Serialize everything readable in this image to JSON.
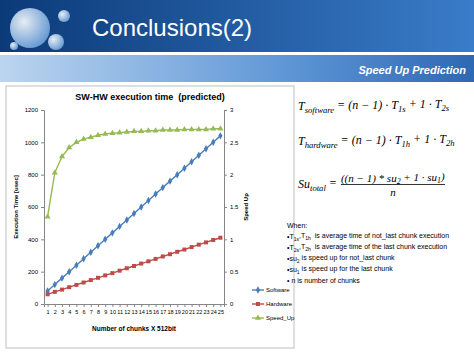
{
  "slide": {
    "title": "Conclusions(2)",
    "subtitle": "Speed Up Prediction",
    "formulas": [
      {
        "lhs": [
          {
            "text": "T"
          },
          {
            "text": "software",
            "sub": true
          },
          {
            "text": " = "
          }
        ],
        "rhs": [
          {
            "text": "(n − 1) · T"
          },
          {
            "text": "1s",
            "sub": true
          },
          {
            "text": " + 1 · T"
          },
          {
            "text": "2s",
            "sub": true
          }
        ]
      },
      {
        "lhs": [
          {
            "text": "T"
          },
          {
            "text": "hardware",
            "sub": true
          },
          {
            "text": " = "
          }
        ],
        "rhs": [
          {
            "text": "(n − 1) · T"
          },
          {
            "text": "1h",
            "sub": true
          },
          {
            "text": " + 1 · T"
          },
          {
            "text": "2h",
            "sub": true
          }
        ]
      },
      {
        "lhs": [
          {
            "text": "Su"
          },
          {
            "text": "total",
            "sub": true
          },
          {
            "text": " = "
          }
        ],
        "numerator": [
          {
            "text": "((n − 1) * su"
          },
          {
            "text": "2",
            "sub": true
          },
          {
            "text": " + 1 · su"
          },
          {
            "text": "1",
            "sub": true
          },
          {
            "text": ")"
          }
        ],
        "denominator": [
          {
            "text": "n"
          }
        ]
      }
    ],
    "notes_heading": "When:",
    "notes": [
      [
        {
          "text": "•T"
        },
        {
          "text": "1s",
          "sub": true
        },
        {
          "text": ",T"
        },
        {
          "text": "1h",
          "sub": true
        },
        {
          "text": "  is average time of not_last chunk execution"
        }
      ],
      [
        {
          "text": "•T"
        },
        {
          "text": "2s",
          "sub": true
        },
        {
          "text": ",T"
        },
        {
          "text": "2h",
          "sub": true
        },
        {
          "text": "  is average time of the last chunk execution"
        }
      ],
      [
        {
          "text": "•su"
        },
        {
          "text": "2",
          "sub": true
        },
        {
          "text": " is speed up for not_last chunk"
        }
      ],
      [
        {
          "text": "•su"
        },
        {
          "text": "1",
          "sub": true
        },
        {
          "text": " is speed up for the last chunk"
        }
      ],
      [
        {
          "text": "• n is number of chunks"
        }
      ]
    ]
  },
  "chart_data": {
    "type": "line",
    "title": "SW-HW execution time  (predicted)",
    "x_label": "Number of chunks X 512bit",
    "y_label": "Execution Time [usec]",
    "y2_label": "Speed Up",
    "categories": [
      "1",
      "2",
      "3",
      "4",
      "5",
      "6",
      "7",
      "8",
      "9",
      "10",
      "11",
      "12",
      "13",
      "14",
      "15",
      "16",
      "17",
      "18",
      "19",
      "20",
      "21",
      "22",
      "23",
      "24",
      "25"
    ],
    "ylim": [
      0,
      1200
    ],
    "yticks": [
      0,
      200,
      400,
      600,
      800,
      1000,
      1200
    ],
    "y2lim": [
      0,
      3
    ],
    "y2ticks": [
      0,
      0.5,
      1,
      1.5,
      2,
      2.5,
      3
    ],
    "grid": false,
    "legend": "right",
    "series": [
      {
        "name": "Software",
        "color": "#4a7ebb",
        "marker": "diamond",
        "values": [
          80,
          120,
          160,
          200,
          240,
          280,
          320,
          360,
          400,
          440,
          480,
          520,
          560,
          600,
          640,
          680,
          720,
          760,
          800,
          840,
          880,
          920,
          960,
          1000,
          1040
        ]
      },
      {
        "name": "Hardware",
        "color": "#be4b48",
        "marker": "square",
        "values": [
          60,
          75,
          89,
          104,
          118,
          133,
          148,
          162,
          177,
          191,
          206,
          221,
          235,
          250,
          264,
          279,
          294,
          308,
          323,
          337,
          352,
          367,
          381,
          396,
          410
        ]
      },
      {
        "name": "Speed_Up",
        "color": "#98b954",
        "marker": "triangle",
        "axis": "y2",
        "values": [
          1.35,
          2.03,
          2.28,
          2.42,
          2.5,
          2.55,
          2.58,
          2.61,
          2.63,
          2.64,
          2.65,
          2.66,
          2.67,
          2.67,
          2.68,
          2.68,
          2.69,
          2.69,
          2.69,
          2.7,
          2.7,
          2.7,
          2.7,
          2.71,
          2.71
        ]
      }
    ]
  }
}
